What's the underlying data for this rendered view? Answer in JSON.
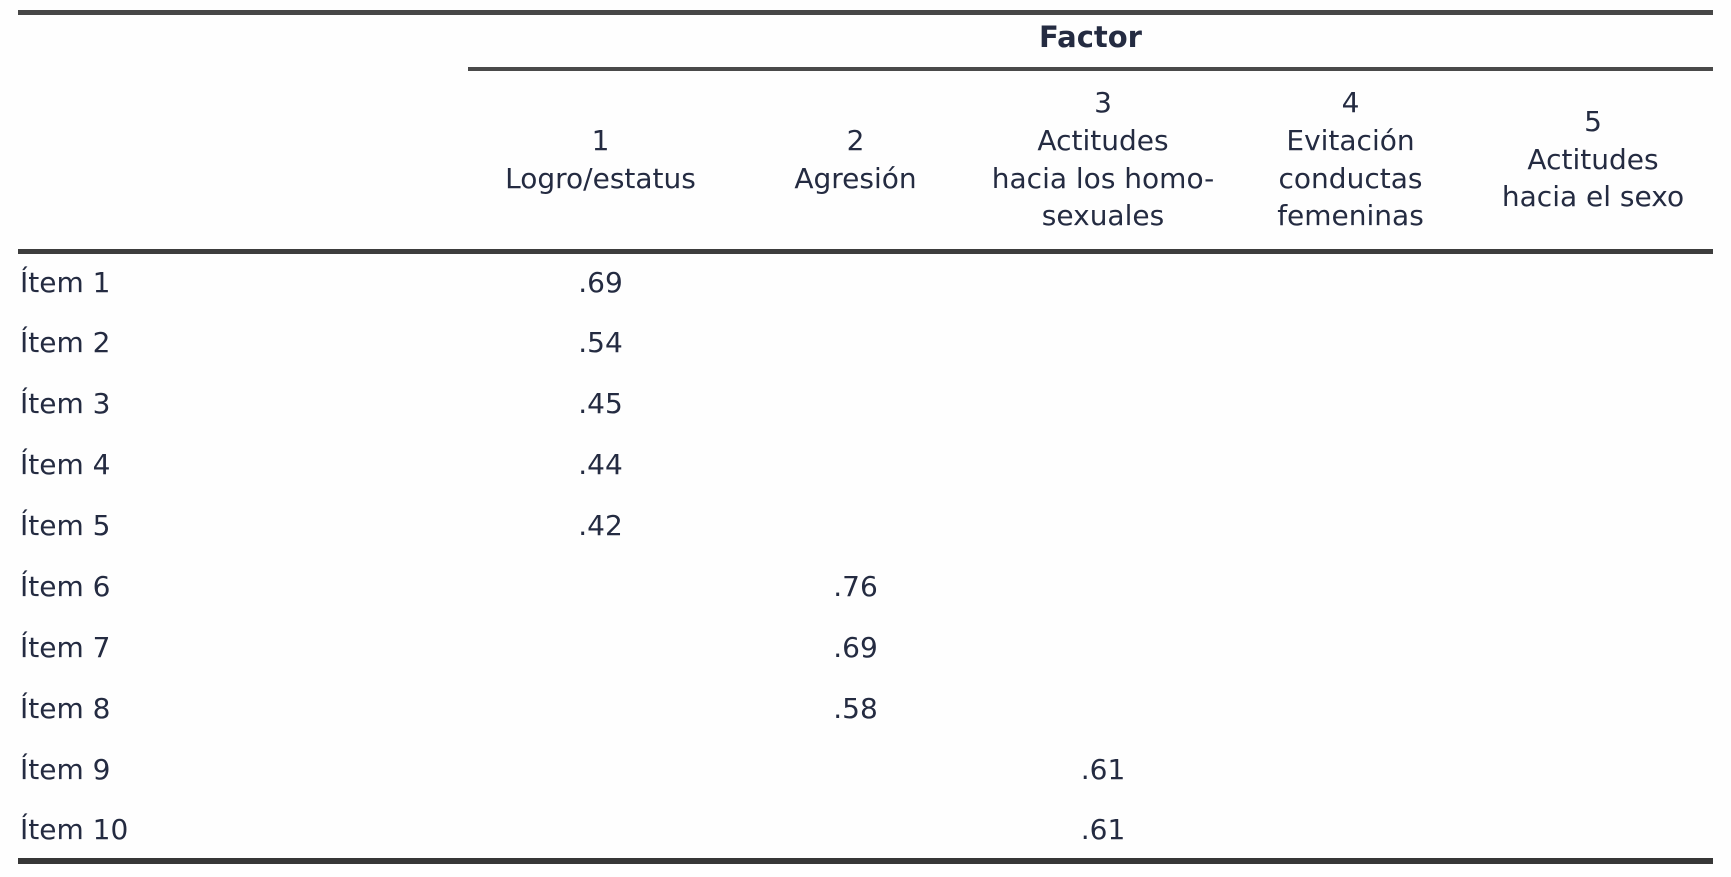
{
  "table": {
    "factor_header": "Factor",
    "columns": [
      {
        "title": "1\nLogro/estatus"
      },
      {
        "title": "2\nAgresión"
      },
      {
        "title": "3\nActitudes\nhacia los homo-\nsexuales"
      },
      {
        "title": "4\nEvitación\nconductas\nfemeninas"
      },
      {
        "title": "5\nActitudes\nhacia el sexo"
      }
    ],
    "rows": [
      {
        "label": "Ítem 1",
        "values": [
          ".69",
          "",
          "",
          "",
          ""
        ]
      },
      {
        "label": "Ítem 2",
        "values": [
          ".54",
          "",
          "",
          "",
          ""
        ]
      },
      {
        "label": "Ítem 3",
        "values": [
          ".45",
          "",
          "",
          "",
          ""
        ]
      },
      {
        "label": "Ítem 4",
        "values": [
          ".44",
          "",
          "",
          "",
          ""
        ]
      },
      {
        "label": "Ítem 5",
        "values": [
          ".42",
          "",
          "",
          "",
          ""
        ]
      },
      {
        "label": "Ítem 6",
        "values": [
          "",
          ".76",
          "",
          "",
          ""
        ]
      },
      {
        "label": "Ítem 7",
        "values": [
          "",
          ".69",
          "",
          "",
          ""
        ]
      },
      {
        "label": "Ítem 8",
        "values": [
          "",
          ".58",
          "",
          "",
          ""
        ]
      },
      {
        "label": "Ítem 9",
        "values": [
          "",
          "",
          ".61",
          "",
          ""
        ]
      },
      {
        "label": "Ítem 10",
        "values": [
          "",
          "",
          ".61",
          "",
          ""
        ]
      }
    ]
  },
  "colors": {
    "text": "#242b41",
    "rule_thin": "#474747",
    "rule_thick": "#3d3d3d",
    "background": "#fefefe"
  },
  "chart_data": {
    "type": "table",
    "title": "Factor",
    "categories": [
      "Ítem 1",
      "Ítem 2",
      "Ítem 3",
      "Ítem 4",
      "Ítem 5",
      "Ítem 6",
      "Ítem 7",
      "Ítem 8",
      "Ítem 9",
      "Ítem 10"
    ],
    "series": [
      {
        "name": "1 Logro/estatus",
        "values": [
          0.69,
          0.54,
          0.45,
          0.44,
          0.42,
          null,
          null,
          null,
          null,
          null
        ]
      },
      {
        "name": "2 Agresión",
        "values": [
          null,
          null,
          null,
          null,
          null,
          0.76,
          0.69,
          0.58,
          null,
          null
        ]
      },
      {
        "name": "3 Actitudes hacia los homosexuales",
        "values": [
          null,
          null,
          null,
          null,
          null,
          null,
          null,
          null,
          0.61,
          0.61
        ]
      },
      {
        "name": "4 Evitación conductas femeninas",
        "values": [
          null,
          null,
          null,
          null,
          null,
          null,
          null,
          null,
          null,
          null
        ]
      },
      {
        "name": "5 Actitudes hacia el sexo",
        "values": [
          null,
          null,
          null,
          null,
          null,
          null,
          null,
          null,
          null,
          null
        ]
      }
    ]
  }
}
